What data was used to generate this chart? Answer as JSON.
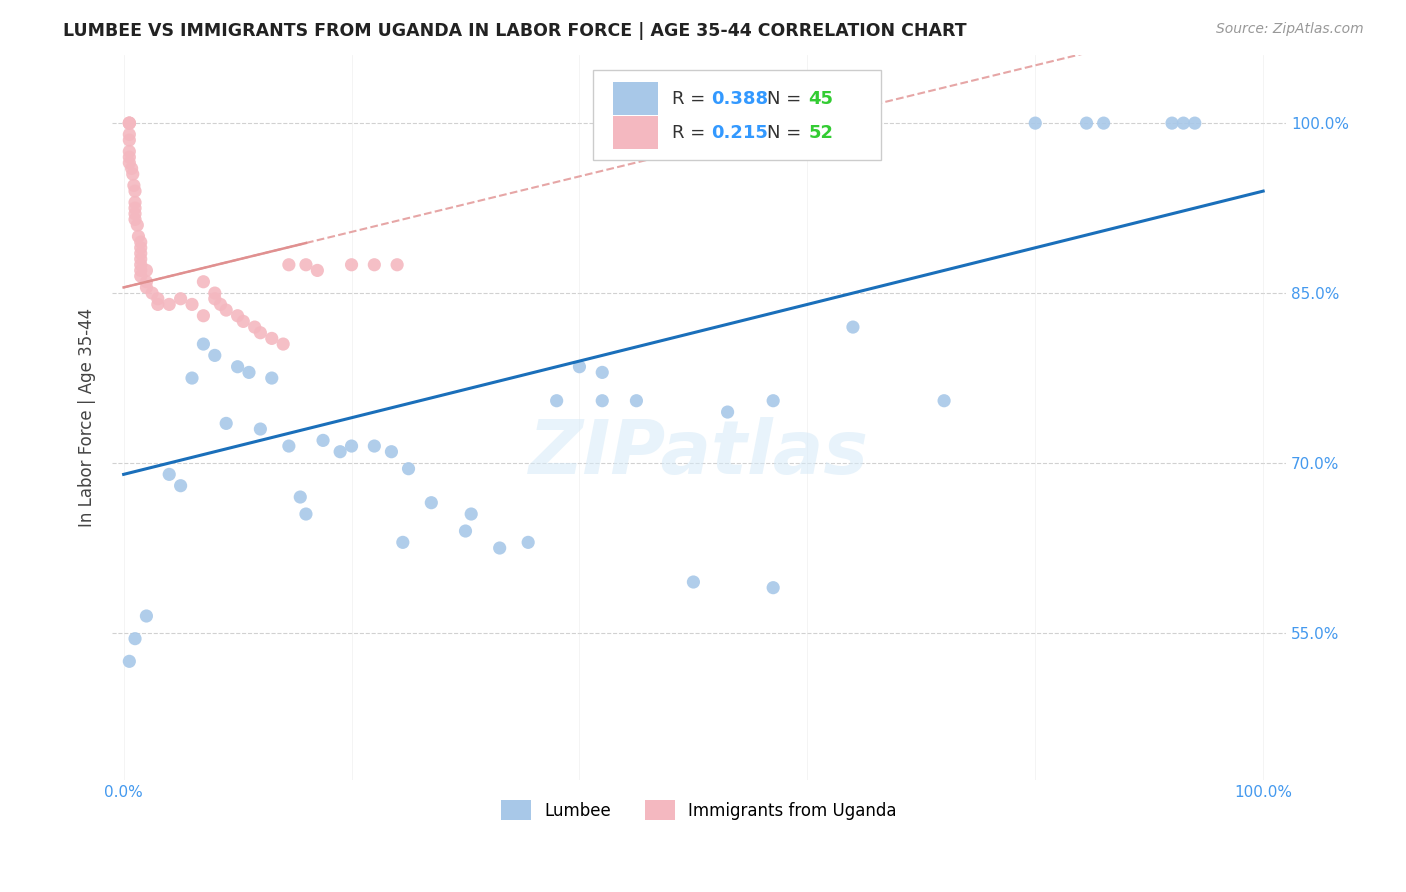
{
  "title": "LUMBEE VS IMMIGRANTS FROM UGANDA IN LABOR FORCE | AGE 35-44 CORRELATION CHART",
  "source": "Source: ZipAtlas.com",
  "ylabel": "In Labor Force | Age 35-44",
  "watermark": "ZIPatlas",
  "lumbee_R": "0.388",
  "lumbee_N": "45",
  "uganda_R": "0.215",
  "uganda_N": "52",
  "blue_color": "#a8c8e8",
  "pink_color": "#f4b8c0",
  "trendline_blue": "#1a6fba",
  "trendline_pink": "#e09090",
  "legend_R_color": "#3399ff",
  "legend_N_color": "#33cc33",
  "lumbee_x": [
    0.005,
    0.01,
    0.02,
    0.04,
    0.05,
    0.06,
    0.07,
    0.08,
    0.09,
    0.1,
    0.11,
    0.12,
    0.13,
    0.145,
    0.155,
    0.16,
    0.175,
    0.19,
    0.2,
    0.22,
    0.235,
    0.25,
    0.27,
    0.3,
    0.33,
    0.355,
    0.38,
    0.4,
    0.45,
    0.5,
    0.53,
    0.57,
    0.64,
    0.72,
    0.8,
    0.845,
    0.86,
    0.92,
    0.93,
    0.94,
    0.57,
    0.42,
    0.42,
    0.305,
    0.245
  ],
  "lumbee_y": [
    0.525,
    0.545,
    0.565,
    0.69,
    0.68,
    0.775,
    0.805,
    0.795,
    0.735,
    0.785,
    0.78,
    0.73,
    0.775,
    0.715,
    0.67,
    0.655,
    0.72,
    0.71,
    0.715,
    0.715,
    0.71,
    0.695,
    0.665,
    0.64,
    0.625,
    0.63,
    0.755,
    0.785,
    0.755,
    0.595,
    0.745,
    0.755,
    0.82,
    0.755,
    1.0,
    1.0,
    1.0,
    1.0,
    1.0,
    1.0,
    0.59,
    0.755,
    0.78,
    0.655,
    0.63
  ],
  "uganda_x": [
    0.005,
    0.005,
    0.005,
    0.005,
    0.005,
    0.005,
    0.005,
    0.005,
    0.007,
    0.008,
    0.009,
    0.01,
    0.01,
    0.01,
    0.01,
    0.01,
    0.012,
    0.013,
    0.015,
    0.015,
    0.015,
    0.015,
    0.015,
    0.015,
    0.015,
    0.02,
    0.02,
    0.02,
    0.025,
    0.03,
    0.03,
    0.04,
    0.05,
    0.06,
    0.07,
    0.08,
    0.08,
    0.085,
    0.09,
    0.1,
    0.105,
    0.115,
    0.12,
    0.13,
    0.14,
    0.145,
    0.16,
    0.17,
    0.2,
    0.22,
    0.24,
    0.07
  ],
  "uganda_y": [
    1.0,
    1.0,
    1.0,
    0.99,
    0.985,
    0.975,
    0.97,
    0.965,
    0.96,
    0.955,
    0.945,
    0.94,
    0.93,
    0.925,
    0.92,
    0.915,
    0.91,
    0.9,
    0.895,
    0.89,
    0.885,
    0.88,
    0.875,
    0.87,
    0.865,
    0.87,
    0.86,
    0.855,
    0.85,
    0.845,
    0.84,
    0.84,
    0.845,
    0.84,
    0.83,
    0.85,
    0.845,
    0.84,
    0.835,
    0.83,
    0.825,
    0.82,
    0.815,
    0.81,
    0.805,
    0.875,
    0.875,
    0.87,
    0.875,
    0.875,
    0.875,
    0.86
  ],
  "ylim": [
    0.42,
    1.06
  ],
  "xlim": [
    -0.01,
    1.02
  ],
  "y_ticks": [
    0.55,
    0.7,
    0.85,
    1.0
  ],
  "y_tick_labels": [
    "55.0%",
    "70.0%",
    "85.0%",
    "100.0%"
  ],
  "x_ticks": [
    0.0,
    0.2,
    0.4,
    0.6,
    0.8,
    1.0
  ],
  "x_tick_labels": [
    "0.0%",
    "",
    "",
    "",
    "",
    "100.0%"
  ]
}
